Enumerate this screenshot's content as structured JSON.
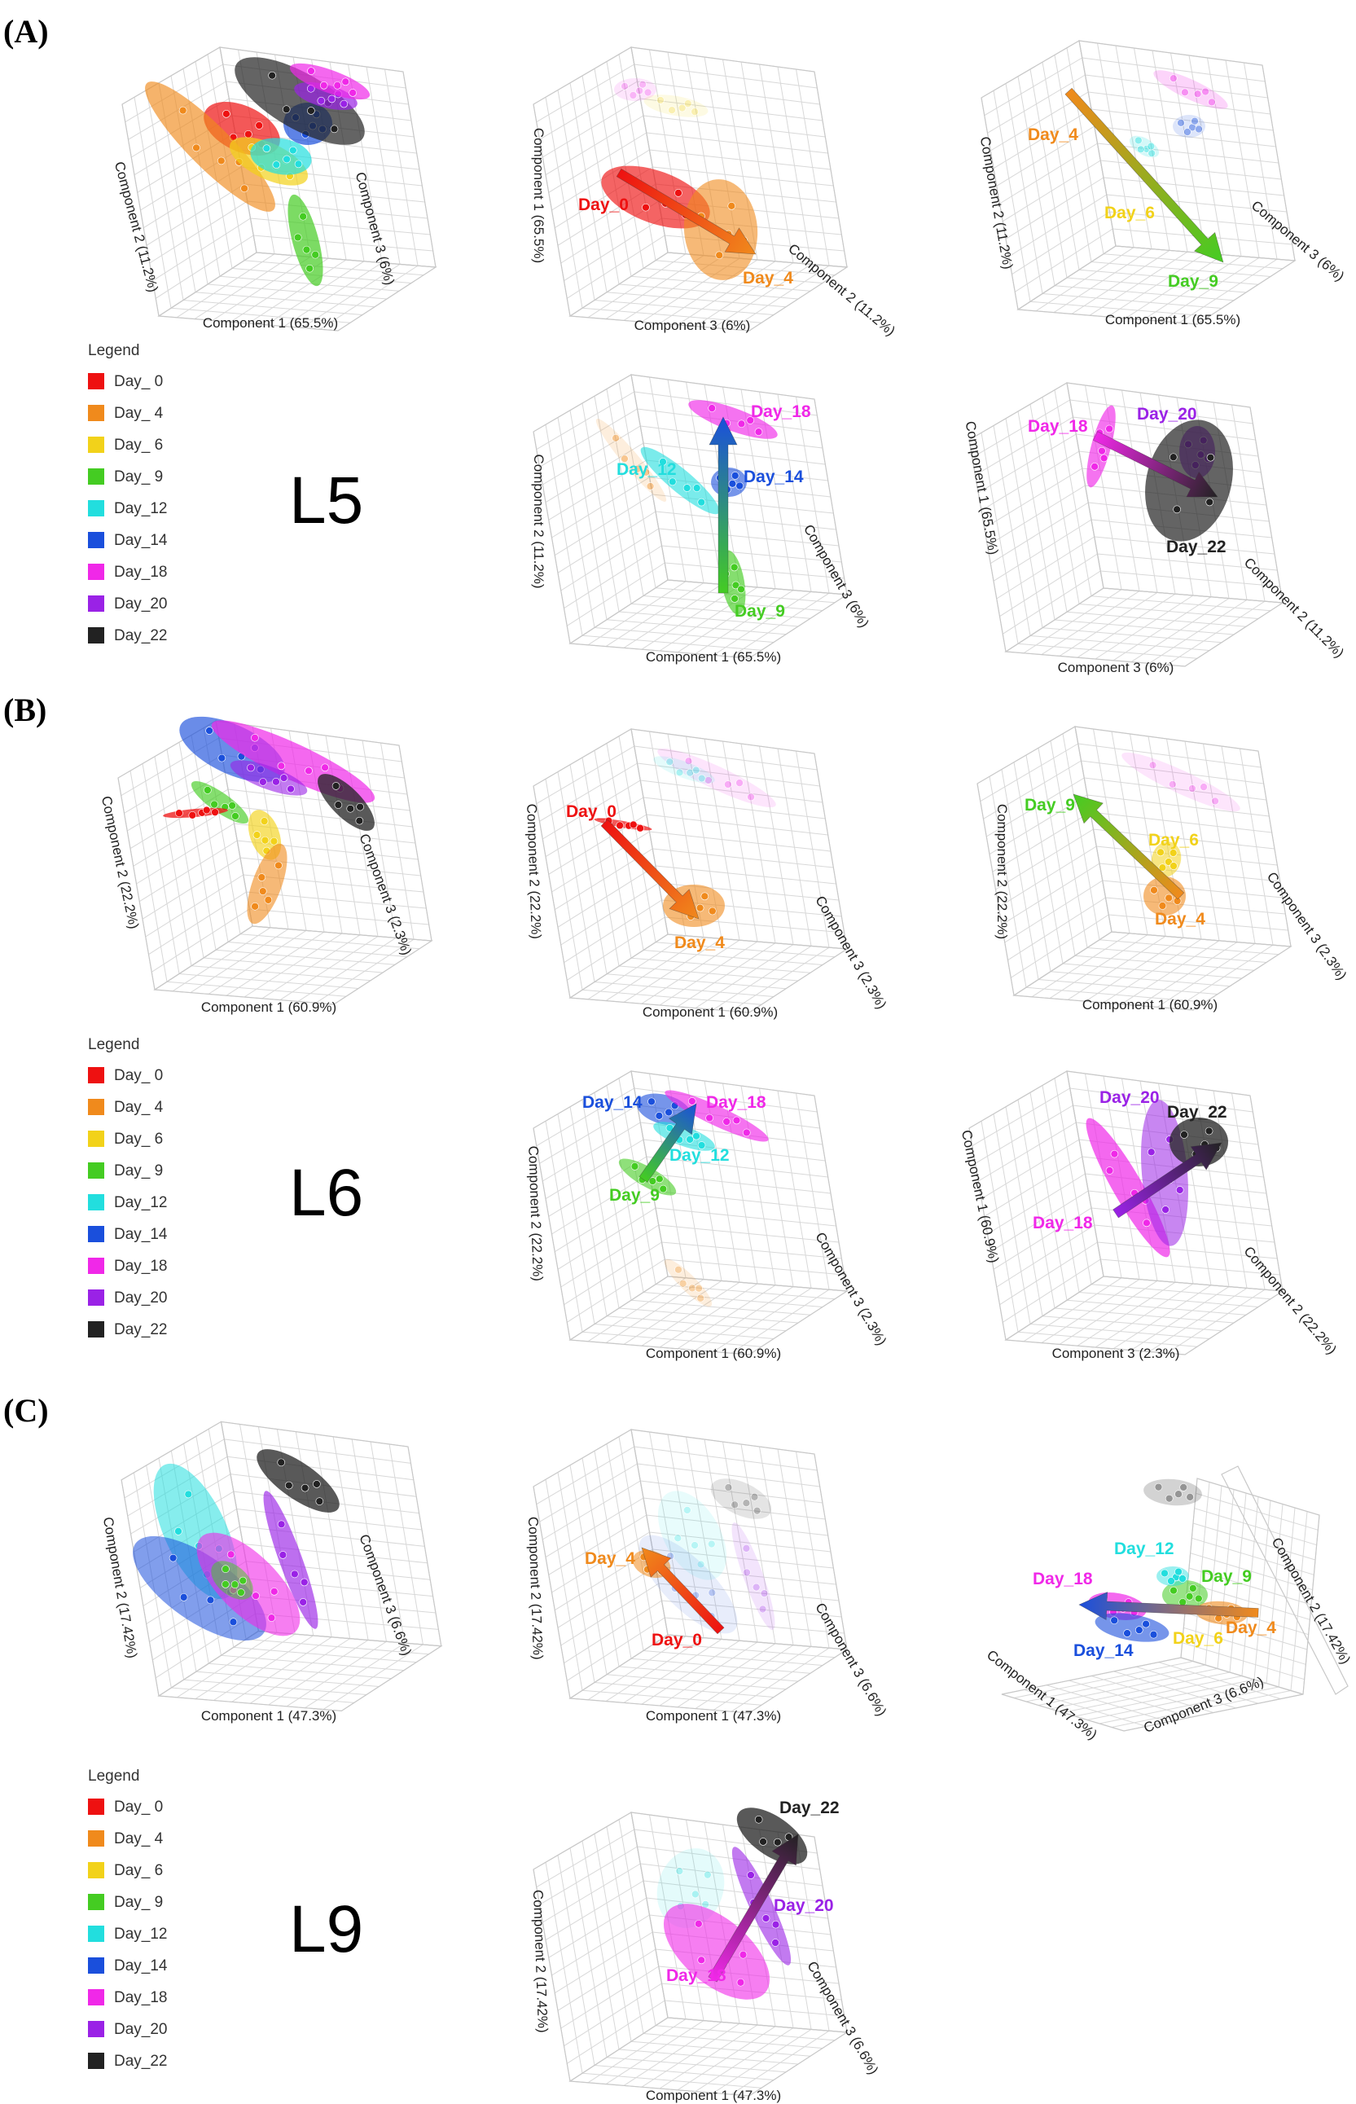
{
  "figure": {
    "colors": {
      "Day_0": "#ee1111",
      "Day_4": "#f08a1c",
      "Day_6": "#f2d21a",
      "Day_9": "#44cc22",
      "Day_12": "#22dede",
      "Day_14": "#1a4fdc",
      "Day_18": "#f028e8",
      "Day_20": "#9a22e6",
      "Day_22": "#222222"
    }
  },
  "chart_data": [
    {
      "panel": "(A)",
      "group": "L5",
      "type": "scatter",
      "title": "",
      "legend_title": "Legend",
      "legend": [
        "Day_ 0",
        "Day_ 4",
        "Day_ 6",
        "Day_ 9",
        "Day_12",
        "Day_14",
        "Day_18",
        "Day_20",
        "Day_22"
      ],
      "components": {
        "c1": "Component 1 (65.5%)",
        "c2": "Component 2 (11.2%)",
        "c3": "Component 3 (6%)"
      },
      "subplots": [
        {
          "axes": [
            "Component 1 (65.5%)",
            "Component 2 (11.2%)",
            "Component 3 (6%)"
          ],
          "labels": []
        },
        {
          "axes": [
            "Component 3 (6%)",
            "Component 1 (65.5%)",
            "Component 2 (11.2%)"
          ],
          "labels": [
            "Day_0",
            "Day_4"
          ]
        },
        {
          "axes": [
            "Component 1 (65.5%)",
            "Component 2 (11.2%)",
            "Component 3 (6%)"
          ],
          "labels": [
            "Day_4",
            "Day_6",
            "Day_9"
          ]
        },
        {
          "axes": [
            "Component 1 (65.5%)",
            "Component 2 (11.2%)",
            "Component 3 (6%)"
          ],
          "labels": [
            "Day_18",
            "Day_12",
            "Day_14",
            "Day_9"
          ]
        },
        {
          "axes": [
            "Component 3 (6%)",
            "Component 1 (65.5%)",
            "Component 2 (11.2%)"
          ],
          "labels": [
            "Day_18",
            "Day_20",
            "Day_22"
          ]
        }
      ]
    },
    {
      "panel": "(B)",
      "group": "L6",
      "type": "scatter",
      "title": "",
      "legend_title": "Legend",
      "legend": [
        "Day_ 0",
        "Day_ 4",
        "Day_ 6",
        "Day_ 9",
        "Day_12",
        "Day_14",
        "Day_18",
        "Day_20",
        "Day_22"
      ],
      "components": {
        "c1": "Component 1 (60.9%)",
        "c2": "Component 2 (22.2%)",
        "c3": "Component 3 (2.3%)"
      },
      "subplots": [
        {
          "axes": [
            "Component 1 (60.9%)",
            "Component 2 (22.2%)",
            "Component 3 (2.3%)"
          ],
          "labels": []
        },
        {
          "axes": [
            "Component 1 (60.9%)",
            "Component 2 (22.2%)",
            "Component 3 (2.3%)"
          ],
          "labels": [
            "Day_0",
            "Day_4"
          ]
        },
        {
          "axes": [
            "Component 1 (60.9%)",
            "Component 2 (22.2%)",
            "Component 3 (2.3%)"
          ],
          "labels": [
            "Day_9",
            "Day_6",
            "Day_4"
          ]
        },
        {
          "axes": [
            "Component 1 (60.9%)",
            "Component 2 (22.2%)",
            "Component 3 (2.3%)"
          ],
          "labels": [
            "Day_14",
            "Day_18",
            "Day_12",
            "Day_9"
          ]
        },
        {
          "axes": [
            "Component 3 (2.3%)",
            "Component 1 (60.9%)",
            "Component 2 (22.2%)"
          ],
          "labels": [
            "Day_20",
            "Day_22",
            "Day_18"
          ]
        }
      ]
    },
    {
      "panel": "(C)",
      "group": "L9",
      "type": "scatter",
      "title": "",
      "legend_title": "Legend",
      "legend": [
        "Day_ 0",
        "Day_ 4",
        "Day_ 6",
        "Day_ 9",
        "Day_12",
        "Day_14",
        "Day_18",
        "Day_20",
        "Day_22"
      ],
      "components": {
        "c1": "Component 1 (47.3%)",
        "c2": "Component 2 (17.42%)",
        "c3": "Component 3 (6.6%)"
      },
      "subplots": [
        {
          "axes": [
            "Component 1 (47.3%)",
            "Component 2 (17.42%)",
            "Component 3 (6.6%)"
          ],
          "labels": []
        },
        {
          "axes": [
            "Component 1 (47.3%)",
            "Component 2 (17.42%)",
            "Component 3 (6.6%)"
          ],
          "labels": [
            "Day_4",
            "Day_0"
          ]
        },
        {
          "axes": [
            "Component 1 (47.3%)",
            "Component 3 (6.6%)",
            "Component 2 (17.42%)"
          ],
          "labels": [
            "Day_12",
            "Day_9",
            "Day_18",
            "Day_14",
            "Day_6",
            "Day_4"
          ]
        },
        {
          "axes": [
            "Component 1 (47.3%)",
            "Component 2 (17.42%)",
            "Component 3 (6.6%)"
          ],
          "labels": [
            "Day_22",
            "Day_20",
            "Day_18"
          ]
        }
      ]
    }
  ]
}
